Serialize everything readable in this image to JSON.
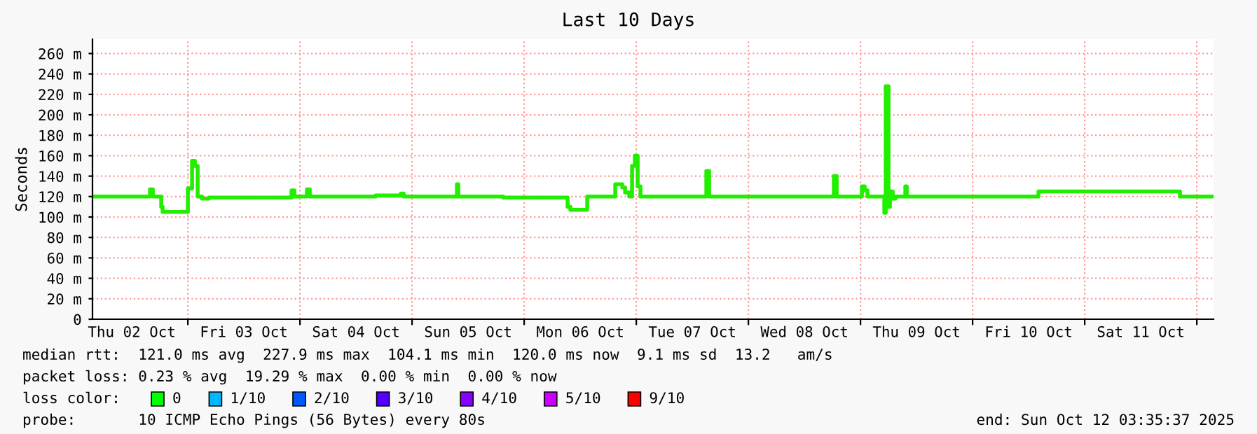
{
  "chart_data": {
    "type": "step",
    "title": "Last 10 Days",
    "ylabel": "Seconds",
    "x": [
      "2025-10-02T03:35",
      "2025-10-02T15:00",
      "2025-10-02T15:54",
      "2025-10-02T16:30",
      "2025-10-02T17:24",
      "2025-10-02T18:18",
      "2025-10-02T18:36",
      "2025-10-02T23:42",
      "2025-10-03T00:00",
      "2025-10-03T00:54",
      "2025-10-03T01:30",
      "2025-10-03T02:06",
      "2025-10-03T03:00",
      "2025-10-03T04:30",
      "2025-10-03T21:54",
      "2025-10-03T22:12",
      "2025-10-03T22:48",
      "2025-10-04T01:12",
      "2025-10-04T01:30",
      "2025-10-04T02:06",
      "2025-10-04T15:54",
      "2025-10-04T16:12",
      "2025-10-04T21:00",
      "2025-10-04T21:36",
      "2025-10-04T22:12",
      "2025-10-05T09:18",
      "2025-10-05T09:36",
      "2025-10-05T09:54",
      "2025-10-05T19:30",
      "2025-10-06T08:42",
      "2025-10-06T09:18",
      "2025-10-06T09:54",
      "2025-10-06T12:54",
      "2025-10-06T13:30",
      "2025-10-06T18:54",
      "2025-10-06T19:30",
      "2025-10-06T21:00",
      "2025-10-06T21:36",
      "2025-10-06T22:30",
      "2025-10-06T23:06",
      "2025-10-06T23:42",
      "2025-10-07T00:18",
      "2025-10-07T00:54",
      "2025-10-07T14:06",
      "2025-10-07T15:00",
      "2025-10-07T15:36",
      "2025-10-08T17:42",
      "2025-10-08T18:18",
      "2025-10-08T18:54",
      "2025-10-09T00:00",
      "2025-10-09T00:18",
      "2025-10-09T00:54",
      "2025-10-09T01:30",
      "2025-10-09T04:30",
      "2025-10-09T05:06",
      "2025-10-09T05:24",
      "2025-10-09T06:00",
      "2025-10-09T06:18",
      "2025-10-09T06:54",
      "2025-10-09T07:30",
      "2025-10-09T09:18",
      "2025-10-09T09:36",
      "2025-10-09T09:54",
      "2025-10-10T13:30",
      "2025-10-10T14:06",
      "2025-10-11T19:30",
      "2025-10-11T20:24",
      "2025-10-12T03:35"
    ],
    "series": [
      {
        "color": "#22ee00",
        "values": [
          120,
          120,
          127,
          120,
          120,
          110,
          105,
          105,
          128,
          155,
          150,
          120,
          118,
          119,
          119,
          126,
          120,
          120,
          127,
          120,
          120,
          121,
          121,
          123,
          120,
          120,
          132,
          120,
          119,
          119,
          110,
          107,
          107,
          120,
          120,
          132,
          129,
          124,
          120,
          150,
          160,
          130,
          120,
          120,
          145,
          120,
          120,
          140,
          120,
          120,
          130,
          126,
          120,
          120,
          104.1,
          227.9,
          110,
          125,
          118,
          120,
          120,
          130,
          120,
          120,
          125,
          125,
          120,
          120
        ]
      }
    ],
    "xlim": [
      "2025-10-02T03:35",
      "2025-10-12T03:35"
    ],
    "xticks": [
      {
        "value": "2025-10-03T00:00",
        "label": null
      },
      {
        "value": "2025-10-04T00:00",
        "label": null
      },
      {
        "value": "2025-10-05T00:00",
        "label": null
      },
      {
        "value": "2025-10-06T00:00",
        "label": null
      },
      {
        "value": "2025-10-07T00:00",
        "label": null
      },
      {
        "value": "2025-10-08T00:00",
        "label": null
      },
      {
        "value": "2025-10-09T00:00",
        "label": null
      },
      {
        "value": "2025-10-10T00:00",
        "label": null
      },
      {
        "value": "2025-10-11T00:00",
        "label": null
      },
      {
        "value": "2025-10-12T00:00",
        "label": null
      },
      {
        "value": "2025-10-02T12:00",
        "label": "Thu 02 Oct"
      },
      {
        "value": "2025-10-03T12:00",
        "label": "Fri 03 Oct"
      },
      {
        "value": "2025-10-04T12:00",
        "label": "Sat 04 Oct"
      },
      {
        "value": "2025-10-05T12:00",
        "label": "Sun 05 Oct"
      },
      {
        "value": "2025-10-06T12:00",
        "label": "Mon 06 Oct"
      },
      {
        "value": "2025-10-07T12:00",
        "label": "Tue 07 Oct"
      },
      {
        "value": "2025-10-08T12:00",
        "label": "Wed 08 Oct"
      },
      {
        "value": "2025-10-09T12:00",
        "label": "Thu 09 Oct"
      },
      {
        "value": "2025-10-10T12:00",
        "label": "Fri 10 Oct"
      },
      {
        "value": "2025-10-11T12:00",
        "label": "Sat 11 Oct"
      }
    ],
    "ylim": [
      0,
      274
    ],
    "yticks": [
      0,
      {
        "value": 20,
        "label": "20 m"
      },
      {
        "value": 40,
        "label": "40 m"
      },
      {
        "value": 60,
        "label": "60 m"
      },
      {
        "value": 80,
        "label": "80 m"
      },
      {
        "value": 100,
        "label": "100 m"
      },
      {
        "value": 120,
        "label": "120 m"
      },
      {
        "value": 140,
        "label": "140 m"
      },
      {
        "value": 160,
        "label": "160 m"
      },
      {
        "value": 180,
        "label": "180 m"
      },
      {
        "value": 200,
        "label": "200 m"
      },
      {
        "value": 220,
        "label": "220 m"
      },
      {
        "value": 240,
        "label": "240 m"
      },
      {
        "value": 260,
        "label": "260 m"
      }
    ],
    "grid": true,
    "line_style": "solid",
    "annotations": [
      "median rtt:  121.0 ms avg  227.9 ms max  104.1 ms min  120.0 ms now  9.1 ms sd  13.2   am/s",
      "packet loss: 0.23 % avg  19.29 % max  0.00 % min  0.00 % now",
      "loss color:",
      "0",
      "1/10",
      "2/10",
      "3/10",
      "4/10",
      "5/10",
      "9/10",
      "probe:       10 ICMP Echo Pings (56 Bytes) every 80s",
      "end: Sun Oct 12 03:35:37 2025"
    ]
  }
}
